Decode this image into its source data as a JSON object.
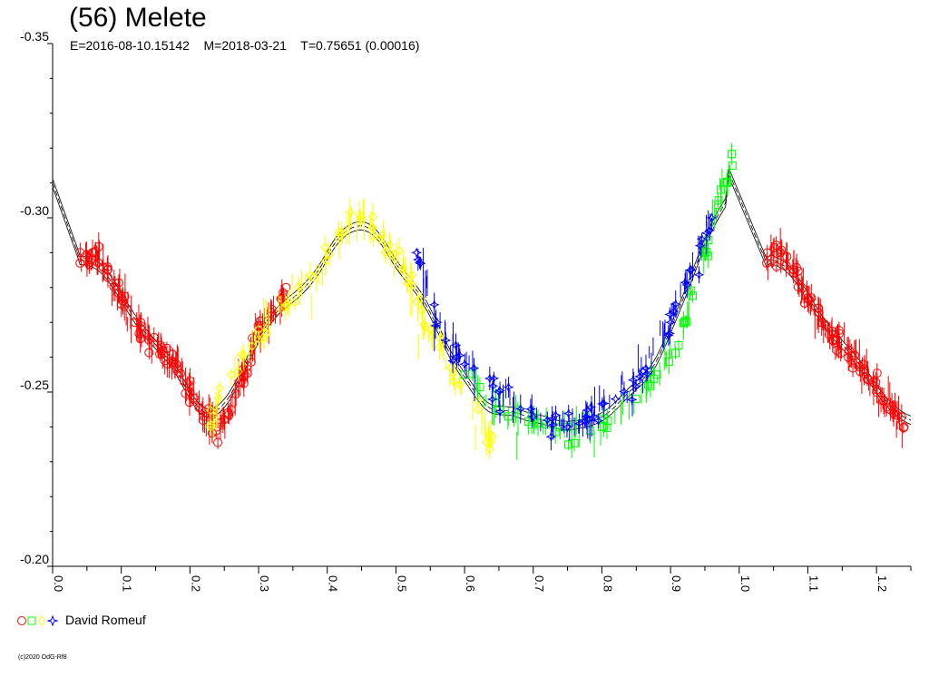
{
  "chart_data": {
    "type": "scatter",
    "title": "(56) Melete",
    "subtitle": "E=2016-08-10.15142    M=2018-03-21    T=0.75651 (0.00016)",
    "xlim": [
      0.0,
      1.25
    ],
    "ylim": [
      -0.35,
      -0.2
    ],
    "y_inverted": true,
    "x_ticks": [
      "0.0",
      "0.1",
      "0.2",
      "0.3",
      "0.4",
      "0.5",
      "0.6",
      "0.7",
      "0.8",
      "0.9",
      "1.0",
      "1.1",
      "1.2"
    ],
    "y_ticks": [
      "-0.35",
      "-0.30",
      "-0.25",
      "-0.20"
    ],
    "legend": {
      "observer": "David Romeuf",
      "placement": "bottom-left"
    },
    "copyright": "(c)2020 OdG-Rf8",
    "grid": false,
    "series": [
      {
        "color": "#ff0000",
        "marker": "circle",
        "x": [
          0.04,
          0.06,
          0.08,
          0.1,
          0.12,
          0.14,
          0.16,
          0.18,
          0.2,
          0.22,
          0.24,
          0.26,
          0.28,
          0.3,
          0.32,
          0.34
        ],
        "y": [
          -0.287,
          -0.29,
          -0.285,
          -0.277,
          -0.27,
          -0.265,
          -0.262,
          -0.258,
          -0.25,
          -0.243,
          -0.24,
          -0.245,
          -0.255,
          -0.267,
          -0.272,
          -0.28
        ]
      },
      {
        "color": "#ffff00",
        "marker": "diamond",
        "x": [
          0.23,
          0.26,
          0.3,
          0.34,
          0.38,
          0.42,
          0.45,
          0.48,
          0.51,
          0.53,
          0.55,
          0.58,
          0.62,
          0.64
        ],
        "y": [
          -0.24,
          -0.255,
          -0.268,
          -0.275,
          -0.283,
          -0.295,
          -0.3,
          -0.295,
          -0.285,
          -0.276,
          -0.268,
          -0.257,
          -0.245,
          -0.237
        ]
      },
      {
        "color": "#00ff00",
        "marker": "square",
        "x": [
          0.6,
          0.65,
          0.7,
          0.75,
          0.8,
          0.85,
          0.88,
          0.92,
          0.95,
          0.97,
          0.99
        ],
        "y": [
          -0.255,
          -0.245,
          -0.242,
          -0.24,
          -0.24,
          -0.248,
          -0.255,
          -0.27,
          -0.29,
          -0.305,
          -0.315
        ]
      },
      {
        "color": "#0000ff",
        "marker": "star",
        "x": [
          0.53,
          0.56,
          0.6,
          0.65,
          0.7,
          0.75,
          0.78,
          0.82,
          0.86,
          0.9,
          0.93,
          0.96
        ],
        "y": [
          -0.29,
          -0.27,
          -0.258,
          -0.25,
          -0.243,
          -0.24,
          -0.242,
          -0.248,
          -0.256,
          -0.27,
          -0.285,
          -0.3
        ]
      },
      {
        "color": "#ff0000",
        "marker": "circle",
        "x": [
          1.04,
          1.06,
          1.08,
          1.1,
          1.12,
          1.14,
          1.16,
          1.18,
          1.2,
          1.22,
          1.24
        ],
        "y": [
          -0.287,
          -0.29,
          -0.285,
          -0.277,
          -0.27,
          -0.265,
          -0.262,
          -0.258,
          -0.25,
          -0.245,
          -0.24
        ]
      }
    ]
  }
}
